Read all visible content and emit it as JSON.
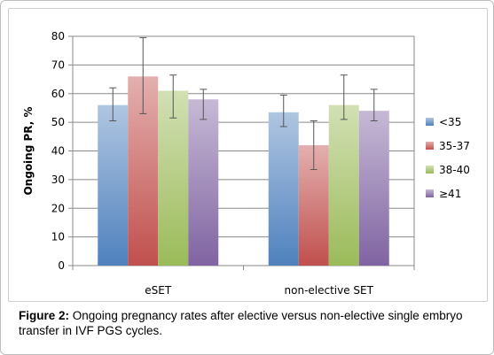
{
  "caption": {
    "prefix": "Figure 2:",
    "text": "Ongoing pregnancy rates after elective versus non-elective single embryo transfer in IVF PGS cycles."
  },
  "chart_data": {
    "type": "bar",
    "ylabel": "Ongoing PR, %",
    "xlabel": "",
    "ylim": [
      0,
      80
    ],
    "yticks": [
      0,
      10,
      20,
      30,
      40,
      50,
      60,
      70,
      80
    ],
    "grid": true,
    "legend_position": "right",
    "categories": [
      "eSET",
      "non-elective SET"
    ],
    "series": [
      {
        "name": "<35",
        "color": "#4f81bd",
        "values": [
          56,
          53.5
        ],
        "error_low": [
          50.5,
          48.5
        ],
        "error_high": [
          62,
          59.5
        ]
      },
      {
        "name": "35-37",
        "color": "#c0504d",
        "values": [
          66,
          42
        ],
        "error_low": [
          53,
          33.5
        ],
        "error_high": [
          79.5,
          50.5
        ]
      },
      {
        "name": "38-40",
        "color": "#9bbb59",
        "values": [
          61,
          56
        ],
        "error_low": [
          51.5,
          51
        ],
        "error_high": [
          66.5,
          66.5
        ]
      },
      {
        "name": "≥41",
        "color": "#8064a2",
        "values": [
          58,
          54
        ],
        "error_low": [
          51,
          50.5
        ],
        "error_high": [
          61.5,
          61.5
        ]
      }
    ]
  }
}
